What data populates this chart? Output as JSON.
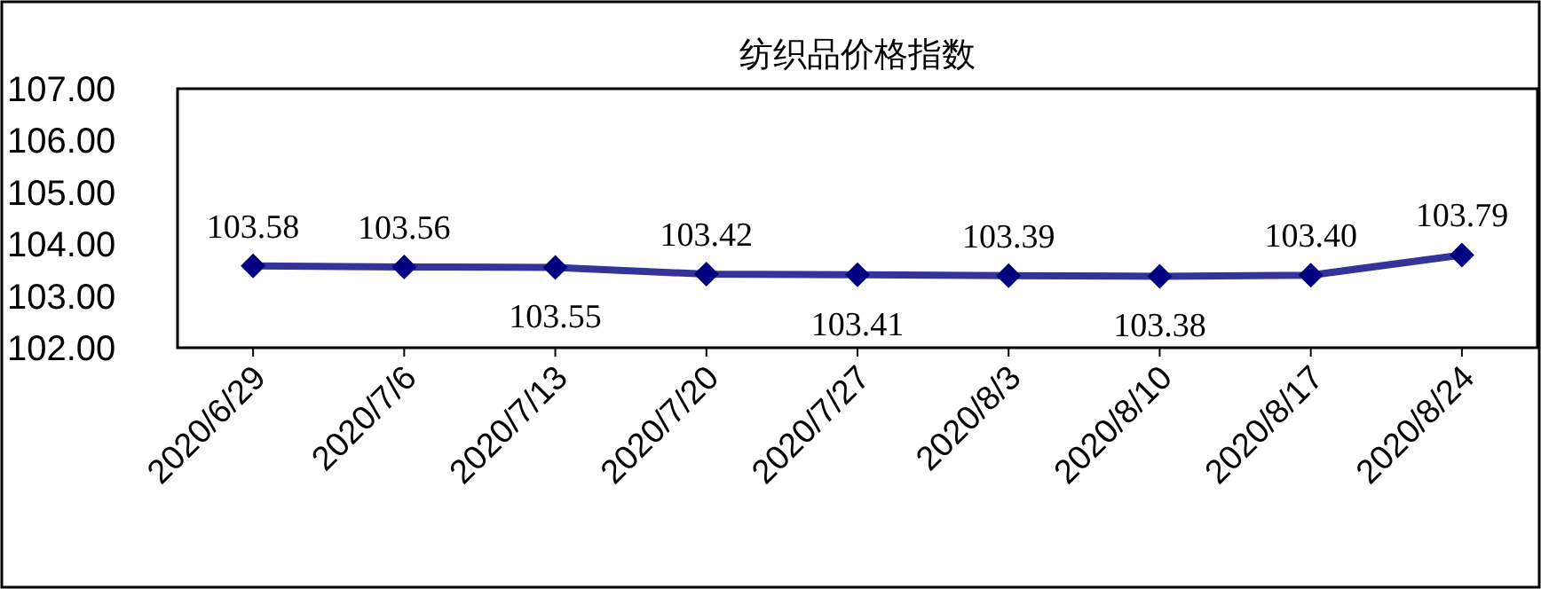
{
  "chart_data": {
    "type": "line",
    "title": "纺织品价格指数",
    "categories": [
      "2020/6/29",
      "2020/7/6",
      "2020/7/13",
      "2020/7/20",
      "2020/7/27",
      "2020/8/3",
      "2020/8/10",
      "2020/8/17",
      "2020/8/24"
    ],
    "series": [
      {
        "color": "#333399",
        "values": [
          103.58,
          103.56,
          103.55,
          103.42,
          103.41,
          103.39,
          103.38,
          103.4,
          103.79
        ],
        "value_labels": [
          "103.58",
          "103.56",
          "103.55",
          "103.42",
          "103.41",
          "103.39",
          "103.38",
          "103.40",
          "103.79"
        ]
      }
    ],
    "ylim": [
      102,
      107
    ],
    "yticks": [
      {
        "value": 102,
        "label": "102.00"
      },
      {
        "value": 103,
        "label": "103.00"
      },
      {
        "value": 104,
        "label": "104.00"
      },
      {
        "value": 105,
        "label": "105.00"
      },
      {
        "value": 106,
        "label": "106.00"
      },
      {
        "value": 107,
        "label": "107.00"
      }
    ],
    "marker": "diamond",
    "line_style": "solid",
    "grid": false
  }
}
